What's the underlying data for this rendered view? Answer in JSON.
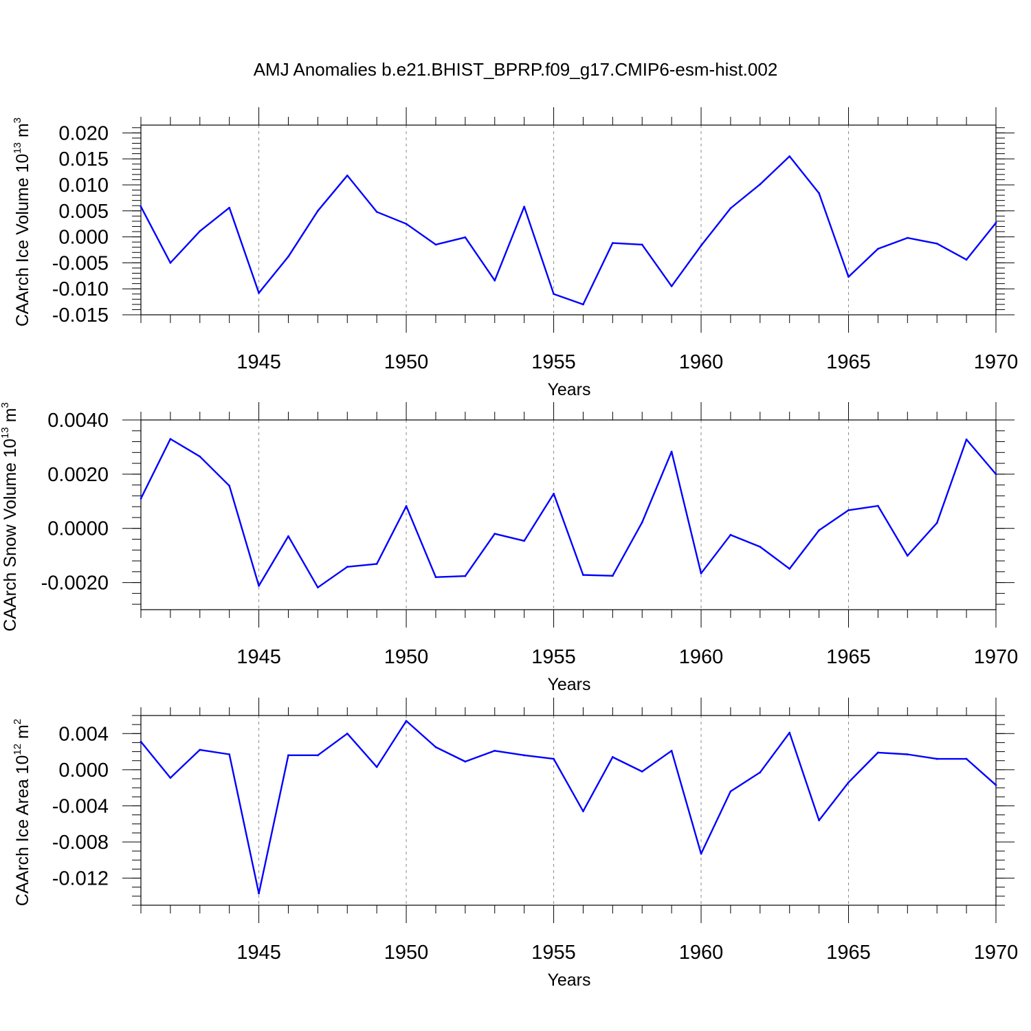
{
  "figure_title": "AMJ Anomalies b.e21.BHIST_BPRP.f09_g17.CMIP6-esm-hist.002",
  "colors": {
    "line": "#0000ff",
    "axis": "#000000",
    "grid": "#888888",
    "background": "#ffffff"
  },
  "chart_data": [
    {
      "type": "line",
      "title": "AMJ Anomalies b.e21.BHIST_BPRP.f09_g17.CMIP6-esm-hist.002",
      "xlabel": "Years",
      "ylabel": {
        "text": "CAArch Ice Volume 10",
        "exponent": "13",
        "unit": " m",
        "unit_exponent": "3"
      },
      "xlim": [
        1941,
        1970
      ],
      "ylim": [
        -0.015,
        0.0215
      ],
      "x_ticks": [
        1945,
        1950,
        1955,
        1960,
        1965,
        1970
      ],
      "y_ticks": [
        -0.015,
        -0.01,
        -0.005,
        0.0,
        0.005,
        0.01,
        0.015,
        0.02
      ],
      "y_tick_labels": [
        "-0.015",
        "-0.010",
        "-0.005",
        "0.000",
        "0.005",
        "0.010",
        "0.015",
        "0.020"
      ],
      "y_minor_step": 0.001,
      "x": [
        1941,
        1942,
        1943,
        1944,
        1945,
        1946,
        1947,
        1948,
        1949,
        1950,
        1951,
        1952,
        1953,
        1954,
        1955,
        1956,
        1957,
        1958,
        1959,
        1960,
        1961,
        1962,
        1963,
        1964,
        1965,
        1966,
        1967,
        1968,
        1969,
        1970
      ],
      "series": [
        {
          "name": "CAArch Ice Volume",
          "values": [
            0.0058,
            -0.005,
            0.0011,
            0.0056,
            -0.0108,
            -0.0038,
            0.005,
            0.0118,
            0.0048,
            0.0025,
            -0.0015,
            -0.0001,
            -0.0084,
            0.0058,
            -0.011,
            -0.013,
            -0.0012,
            -0.0015,
            -0.0095,
            -0.0017,
            0.0055,
            0.0101,
            0.0155,
            0.0084,
            -0.0077,
            -0.0023,
            -0.0002,
            -0.0013,
            -0.0044,
            0.0027
          ]
        }
      ]
    },
    {
      "type": "line",
      "xlabel": "Years",
      "ylabel": {
        "text": "CAArch Snow Volume 10",
        "exponent": "13",
        "unit": " m",
        "unit_exponent": "3"
      },
      "xlim": [
        1941,
        1970
      ],
      "ylim": [
        -0.003,
        0.004
      ],
      "x_ticks": [
        1945,
        1950,
        1955,
        1960,
        1965,
        1970
      ],
      "y_ticks": [
        -0.002,
        0.0,
        0.002,
        0.004
      ],
      "y_tick_labels": [
        "-0.0020",
        "0.0000",
        "0.0020",
        "0.0040"
      ],
      "y_minor_step": 0.0004,
      "x": [
        1941,
        1942,
        1943,
        1944,
        1945,
        1946,
        1947,
        1948,
        1949,
        1950,
        1951,
        1952,
        1953,
        1954,
        1955,
        1956,
        1957,
        1958,
        1959,
        1960,
        1961,
        1962,
        1963,
        1964,
        1965,
        1966,
        1967,
        1968,
        1969,
        1970
      ],
      "series": [
        {
          "name": "CAArch Snow Volume",
          "values": [
            0.0011,
            0.0033,
            0.00265,
            0.00157,
            -0.00212,
            -0.00029,
            -0.00218,
            -0.00142,
            -0.00131,
            0.00082,
            -0.0018,
            -0.00176,
            -0.0002,
            -0.00046,
            0.00128,
            -0.00172,
            -0.00175,
            0.00022,
            0.00283,
            -0.00166,
            -0.00024,
            -0.00068,
            -0.00149,
            -7e-05,
            0.00067,
            0.00083,
            -0.00101,
            0.0002,
            0.00328,
            0.002
          ]
        }
      ]
    },
    {
      "type": "line",
      "xlabel": "Years",
      "ylabel": {
        "text": "CAArch Ice Area 10",
        "exponent": "12",
        "unit": " m",
        "unit_exponent": "2"
      },
      "xlim": [
        1941,
        1970
      ],
      "ylim": [
        -0.015,
        0.006
      ],
      "x_ticks": [
        1945,
        1950,
        1955,
        1960,
        1965,
        1970
      ],
      "y_ticks": [
        -0.012,
        -0.008,
        -0.004,
        0.0,
        0.004
      ],
      "y_tick_labels": [
        "-0.012",
        "-0.008",
        "-0.004",
        "0.000",
        "0.004"
      ],
      "y_minor_step": 0.001,
      "x": [
        1941,
        1942,
        1943,
        1944,
        1945,
        1946,
        1947,
        1948,
        1949,
        1950,
        1951,
        1952,
        1953,
        1954,
        1955,
        1956,
        1957,
        1958,
        1959,
        1960,
        1961,
        1962,
        1963,
        1964,
        1965,
        1966,
        1967,
        1968,
        1969,
        1970
      ],
      "series": [
        {
          "name": "CAArch Ice Area",
          "values": [
            0.0031,
            -0.0009,
            0.0022,
            0.0017,
            -0.0137,
            0.0016,
            0.0016,
            0.004,
            0.0003,
            0.0054,
            0.0025,
            0.0009,
            0.0021,
            0.0016,
            0.0012,
            -0.0046,
            0.0014,
            -0.0002,
            0.0021,
            -0.0093,
            -0.0024,
            -0.0003,
            0.0041,
            -0.0056,
            -0.0014,
            0.0019,
            0.0017,
            0.0012,
            0.0012,
            -0.0017
          ]
        }
      ]
    }
  ]
}
